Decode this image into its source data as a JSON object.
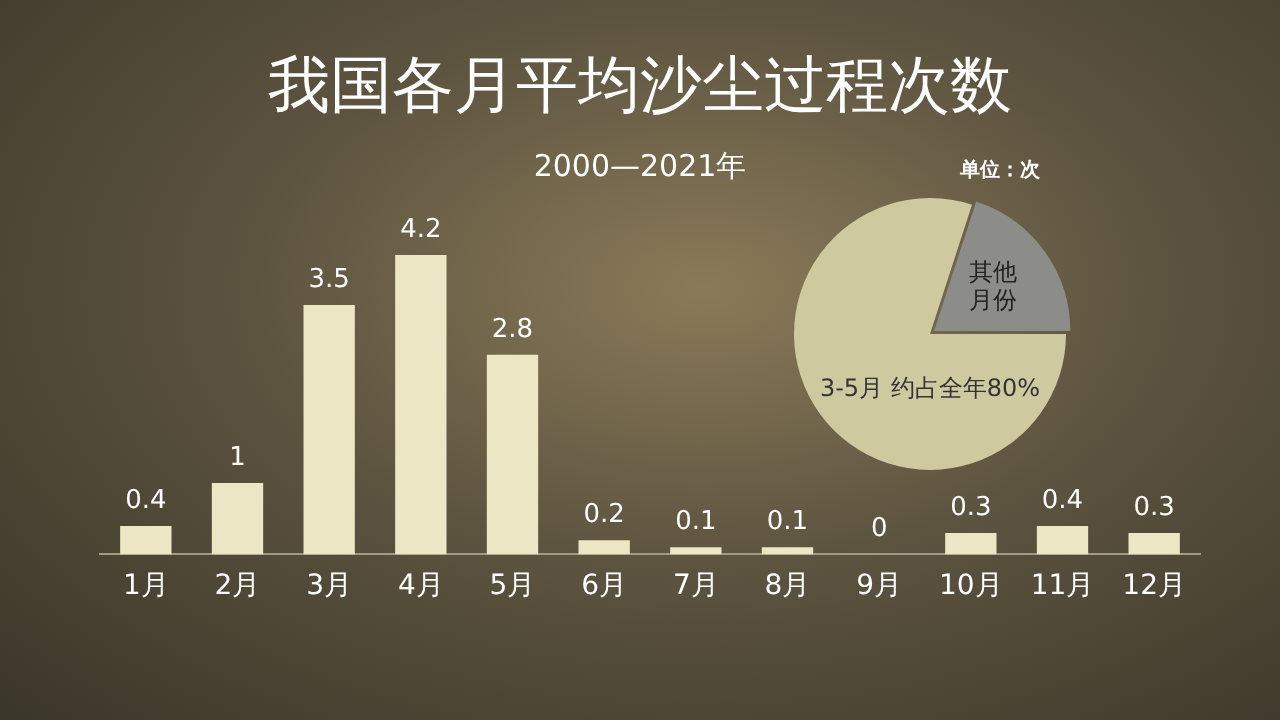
{
  "chart_data": [
    {
      "type": "bar",
      "title": "我国各月平均沙尘过程次数",
      "subtitle": "2000—2021年",
      "annotations": [
        "单位：次"
      ],
      "categories": [
        "1月",
        "2月",
        "3月",
        "4月",
        "5月",
        "6月",
        "7月",
        "8月",
        "9月",
        "10月",
        "11月",
        "12月"
      ],
      "values": [
        0.4,
        1,
        3.5,
        4.2,
        2.8,
        0.2,
        0.1,
        0.1,
        0,
        0.3,
        0.4,
        0.3
      ],
      "color": "#ece6c4",
      "data_labels": true,
      "grid": false,
      "legend": false
    },
    {
      "type": "pie",
      "categories": [
        "3-5月 约占全年80%",
        "其他月份"
      ],
      "values": [
        80,
        20
      ],
      "colors": [
        "#cfc9a0",
        "#8c8c88"
      ],
      "legend": false
    }
  ]
}
